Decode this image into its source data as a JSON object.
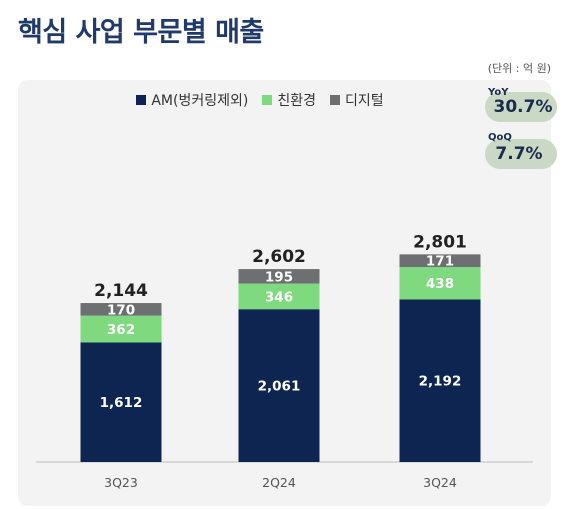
{
  "title": "핵심 사업 부문별 매출",
  "unit_note": "(단위 : 억 원)",
  "colors": {
    "am": "#0e2451",
    "eco": "#7ed97f",
    "digital": "#6e6f73",
    "pill": "#c9d9c5",
    "title": "#1f3a6b"
  },
  "badges": {
    "yoy": {
      "label": "YoY",
      "value": "30.7%"
    },
    "qoq": {
      "label": "QoQ",
      "value": "7.7%"
    }
  },
  "chart_data": {
    "type": "bar",
    "stacked": true,
    "categories": [
      "3Q23",
      "2Q24",
      "3Q24"
    ],
    "series": [
      {
        "name": "AM(벙커링제외)",
        "values": [
          1612,
          2061,
          2192
        ],
        "display": [
          "1,612",
          "2,061",
          "2,192"
        ],
        "color": "#0e2451"
      },
      {
        "name": "친환경",
        "values": [
          362,
          346,
          438
        ],
        "display": [
          "362",
          "346",
          "438"
        ],
        "color": "#7ed97f"
      },
      {
        "name": "디지털",
        "values": [
          170,
          195,
          171
        ],
        "display": [
          "170",
          "195",
          "171"
        ],
        "color": "#6e6f73"
      }
    ],
    "totals": [
      2144,
      2602,
      2801
    ],
    "totals_display": [
      "2,144",
      "2,602",
      "2,801"
    ],
    "legend_position": "top-center",
    "grid": false
  }
}
